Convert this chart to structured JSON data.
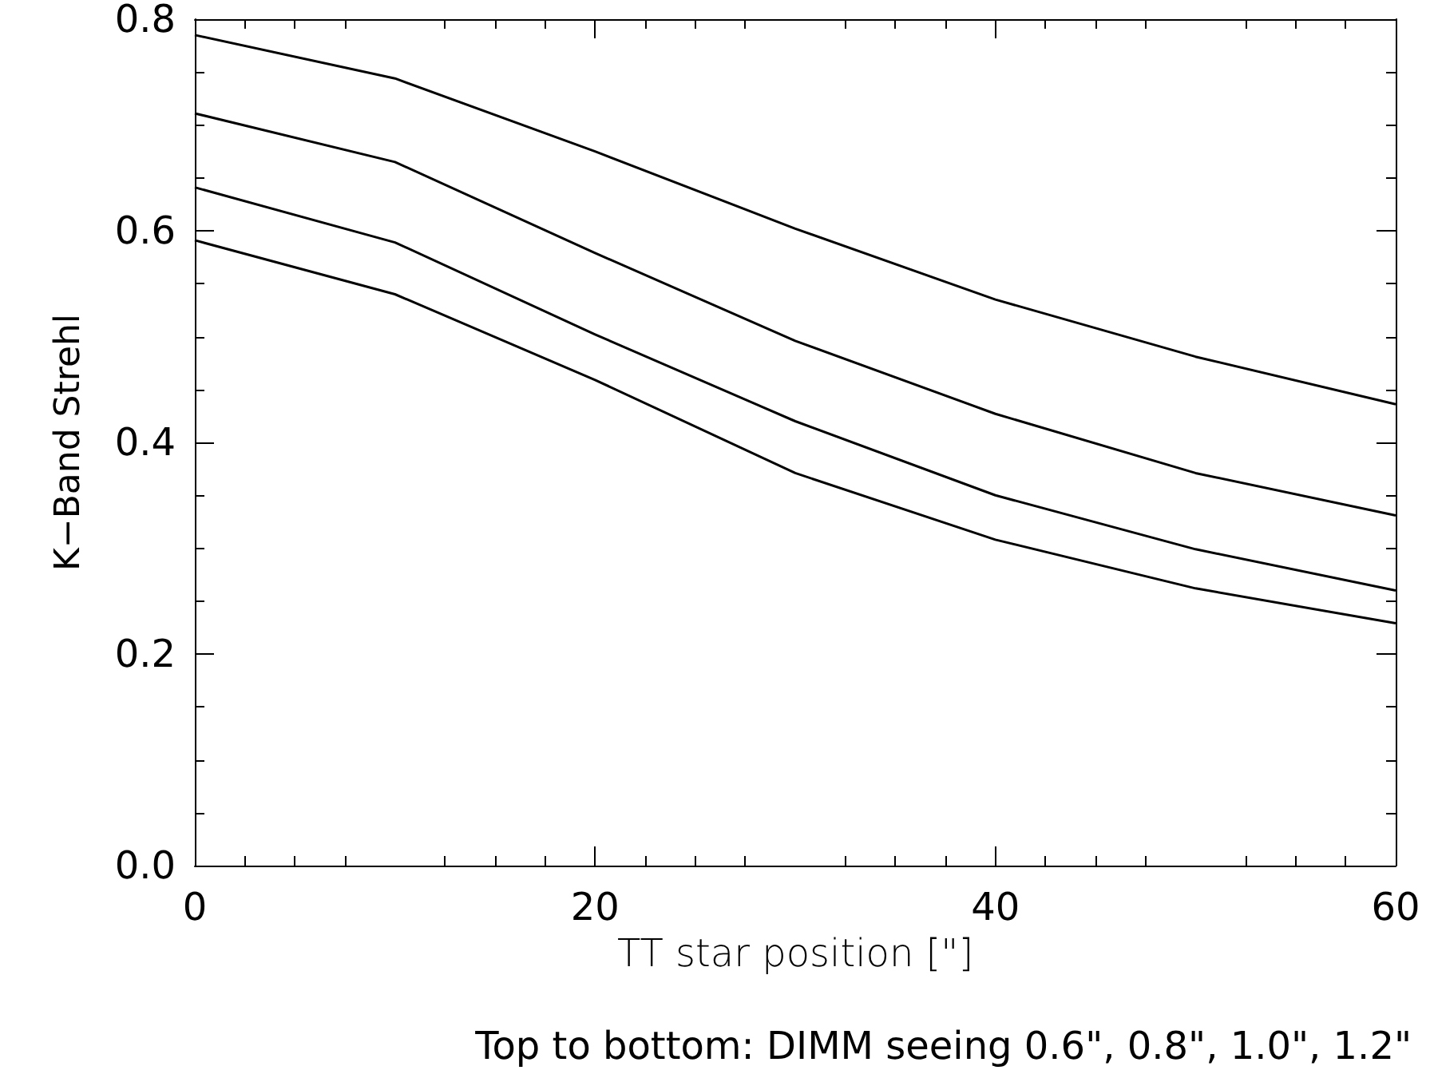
{
  "chart_data": {
    "type": "line",
    "xlabel": "TT star position [\"]",
    "ylabel": "K−Band Strehl",
    "annotations": [
      "Top to bottom: DIMM seeing 0.6\", 0.8\", 1.0\", 1.2\""
    ],
    "x": [
      0,
      10,
      20,
      30,
      40,
      50,
      60
    ],
    "series": [
      {
        "color": "#000000",
        "values": [
          0.785,
          0.744,
          0.675,
          0.602,
          0.535,
          0.481,
          0.436
        ]
      },
      {
        "color": "#000000",
        "values": [
          0.711,
          0.665,
          0.579,
          0.496,
          0.427,
          0.371,
          0.331
        ]
      },
      {
        "color": "#000000",
        "values": [
          0.641,
          0.589,
          0.502,
          0.42,
          0.35,
          0.299,
          0.26
        ]
      },
      {
        "color": "#000000",
        "values": [
          0.591,
          0.54,
          0.459,
          0.371,
          0.308,
          0.262,
          0.229
        ]
      }
    ],
    "xlim": [
      0,
      60
    ],
    "xticks": [
      0,
      20,
      40,
      60
    ],
    "ylim": [
      0,
      0.8
    ],
    "yticks": [
      {
        "value": 0,
        "label": "0.0"
      },
      {
        "value": 0.2,
        "label": "0.2"
      },
      {
        "value": 0.4,
        "label": "0.4"
      },
      {
        "value": 0.6,
        "label": "0.6"
      },
      {
        "value": 0.8,
        "label": "0.8"
      }
    ],
    "grid": false,
    "marker": "none",
    "line_style": "solid"
  }
}
